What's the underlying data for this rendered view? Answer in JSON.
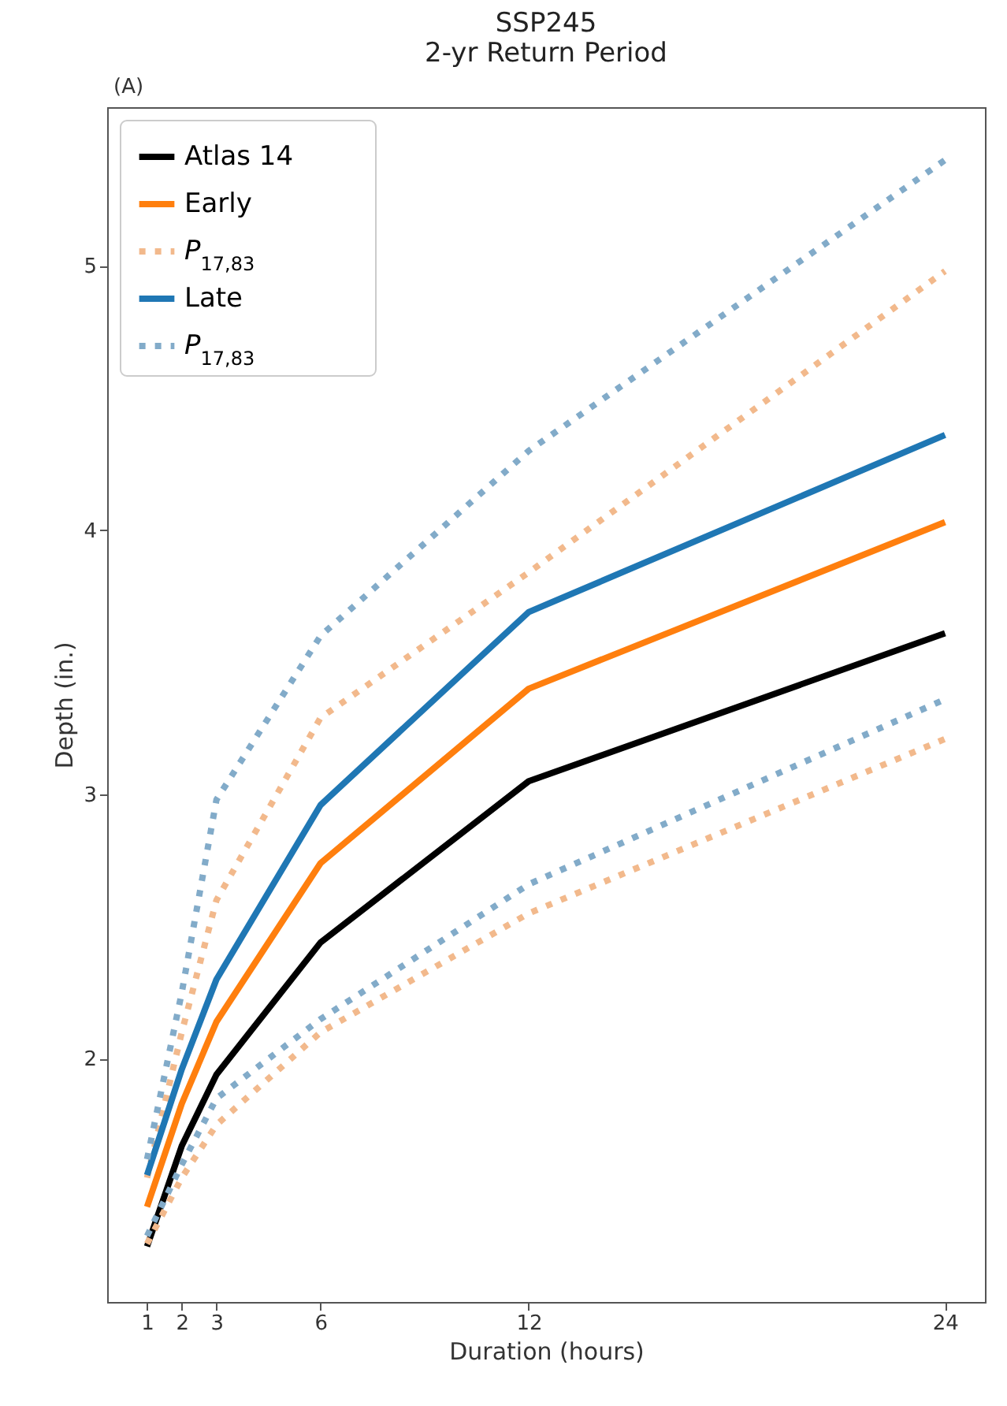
{
  "chart_data": {
    "type": "line",
    "title": "SSP245",
    "subtitle": "2-yr Return Period",
    "annotations": [
      "(A)"
    ],
    "xlabel": "Duration (hours)",
    "ylabel": "Depth (in.)",
    "x": [
      1,
      2,
      3,
      6,
      12,
      24
    ],
    "xlim": [
      -0.15,
      25.15
    ],
    "xticks": [
      1,
      2,
      3,
      6,
      12,
      24
    ],
    "ylim": [
      1.08,
      5.6
    ],
    "yticks": [
      2,
      3,
      4,
      5
    ],
    "grid": false,
    "legend": "top left",
    "marker": "none",
    "series": [
      {
        "name": "Atlas 14",
        "color": "#000000",
        "line_style": "solid",
        "values": [
          1.29,
          1.67,
          1.94,
          2.44,
          3.05,
          3.61
        ]
      },
      {
        "name": "Early",
        "color": "#ff7f0e",
        "line_style": "solid",
        "values": [
          1.44,
          1.83,
          2.14,
          2.74,
          3.4,
          4.03
        ]
      },
      {
        "name": "P$_{17,83}$",
        "color": "#f2b98c",
        "line_style": "dotted",
        "values": [
          1.55,
          2.1,
          2.6,
          3.29,
          3.84,
          4.98
        ]
      },
      {
        "name": "Late",
        "color": "#1f77b4",
        "line_style": "solid",
        "values": [
          1.56,
          1.96,
          2.3,
          2.96,
          3.69,
          4.36
        ]
      },
      {
        "name": "P$_{17,83}$",
        "color": "#82abc9",
        "line_style": "dotted",
        "values": [
          1.62,
          2.25,
          2.98,
          3.6,
          4.3,
          5.4
        ]
      },
      {
        "color": "#f2b98c",
        "line_style": "dotted",
        "values": [
          1.3,
          1.55,
          1.75,
          2.1,
          2.55,
          3.21
        ]
      },
      {
        "color": "#82abc9",
        "line_style": "dotted",
        "values": [
          1.33,
          1.6,
          1.85,
          2.15,
          2.66,
          3.36
        ]
      }
    ]
  }
}
